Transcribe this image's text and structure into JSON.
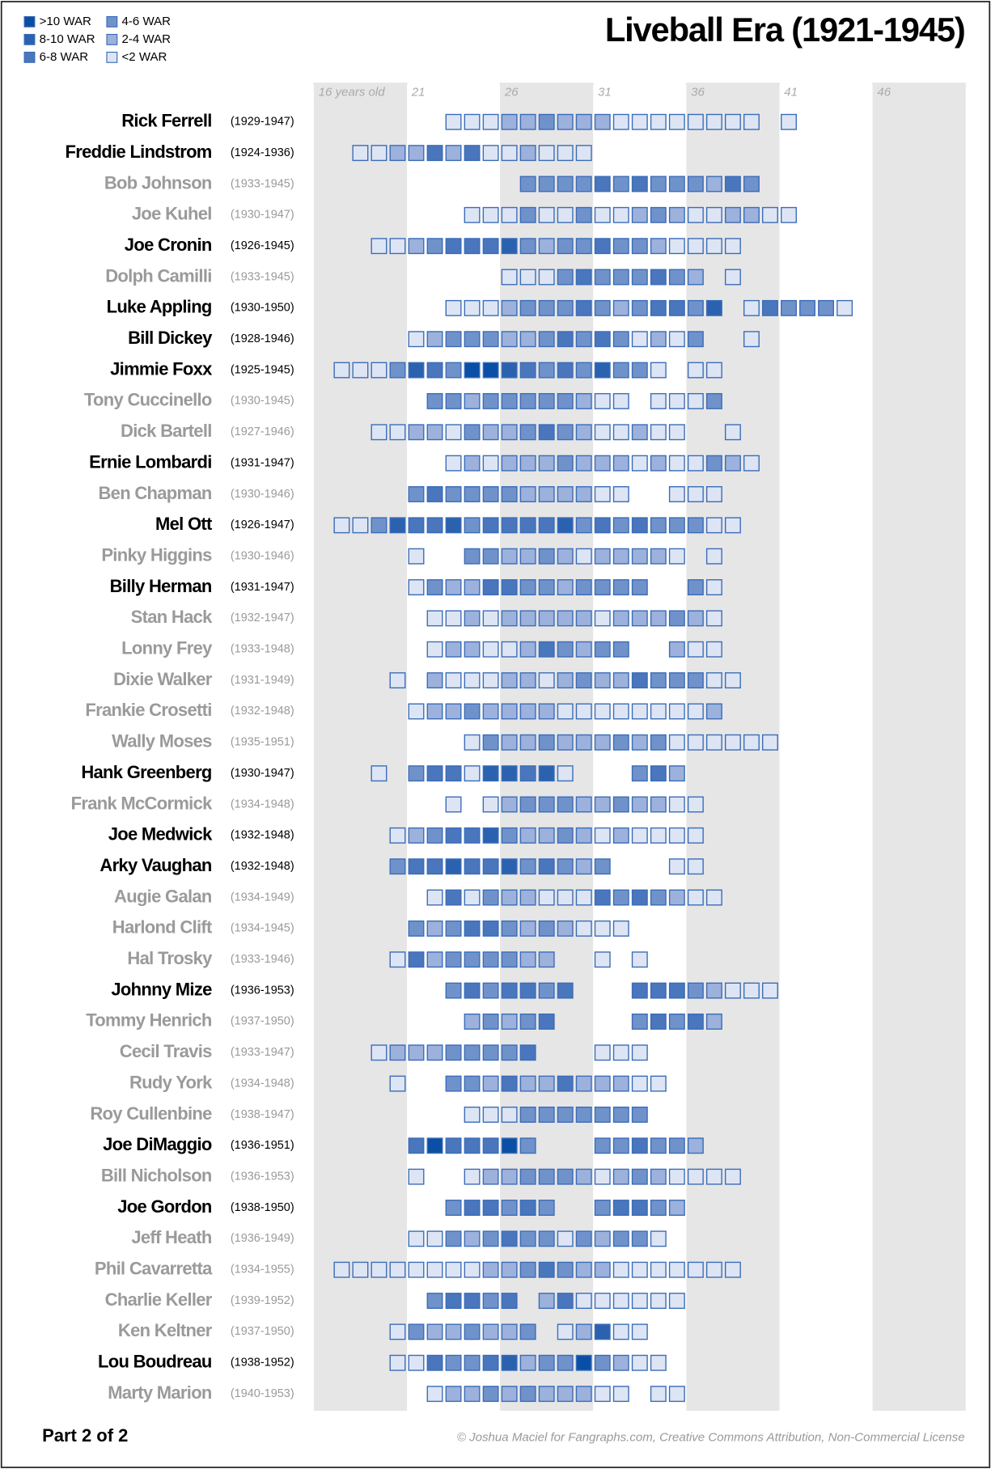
{
  "title": "Liveball Era (1921-1945)",
  "legend": [
    {
      "label": ">10 WAR",
      "color": "#0a4fa6"
    },
    {
      "label": "8-10 WAR",
      "color": "#2a62b0"
    },
    {
      "label": "6-8 WAR",
      "color": "#4a76bd"
    },
    {
      "label": "4-6 WAR",
      "color": "#7092cb"
    },
    {
      "label": "2-4 WAR",
      "color": "#9cb1dc"
    },
    {
      "label": "<2 WAR",
      "color": "#dde5f4"
    }
  ],
  "box_stroke": "#3b6cb7",
  "band_color": "#e6e6e6",
  "xlim": [
    16,
    51
  ],
  "age_ticks": [
    {
      "value": 16,
      "label": "16 years old"
    },
    21,
    26,
    31,
    36,
    41,
    46
  ],
  "players": [
    {
      "name": "Rick Ferrell",
      "years": "(1929-1947)",
      "color": "#000000",
      "start_age": 23,
      "levels": [
        5,
        5,
        5,
        4,
        4,
        3,
        4,
        4,
        4,
        5,
        5,
        5,
        5,
        5,
        5,
        5,
        5,
        null,
        5
      ]
    },
    {
      "name": "Freddie Lindstrom",
      "years": "(1924-1936)",
      "color": "#000000",
      "start_age": 18,
      "levels": [
        5,
        5,
        4,
        4,
        2,
        4,
        2,
        5,
        5,
        4,
        5,
        5,
        5
      ]
    },
    {
      "name": "Bob Johnson",
      "years": "(1933-1945)",
      "color": "#9a9a9a",
      "start_age": 27,
      "levels": [
        3,
        3,
        3,
        3,
        2,
        3,
        2,
        3,
        3,
        3,
        4,
        2,
        3
      ]
    },
    {
      "name": "Joe Kuhel",
      "years": "(1930-1947)",
      "color": "#9a9a9a",
      "start_age": 24,
      "levels": [
        5,
        5,
        5,
        3,
        5,
        5,
        3,
        5,
        5,
        4,
        3,
        4,
        5,
        5,
        4,
        4,
        5,
        5
      ]
    },
    {
      "name": "Joe Cronin",
      "years": "(1926-1945)",
      "color": "#000000",
      "start_age": 19,
      "levels": [
        5,
        5,
        4,
        3,
        2,
        2,
        2,
        1,
        3,
        4,
        3,
        3,
        2,
        3,
        3,
        4,
        5,
        5,
        5,
        5
      ]
    },
    {
      "name": "Dolph Camilli",
      "years": "(1933-1945)",
      "color": "#9a9a9a",
      "start_age": 26,
      "levels": [
        5,
        5,
        5,
        3,
        2,
        3,
        3,
        3,
        2,
        3,
        4,
        null,
        5
      ]
    },
    {
      "name": "Luke Appling",
      "years": "(1930-1950)",
      "color": "#000000",
      "start_age": 23,
      "levels": [
        5,
        5,
        5,
        4,
        3,
        3,
        3,
        2,
        3,
        4,
        3,
        2,
        2,
        3,
        1,
        null,
        5,
        2,
        3,
        3,
        3,
        5
      ]
    },
    {
      "name": "Bill Dickey",
      "years": "(1928-1946)",
      "color": "#000000",
      "start_age": 21,
      "levels": [
        5,
        4,
        3,
        3,
        3,
        4,
        4,
        3,
        2,
        3,
        2,
        3,
        5,
        4,
        5,
        3,
        null,
        null,
        5
      ]
    },
    {
      "name": "Jimmie Foxx",
      "years": "(1925-1945)",
      "color": "#000000",
      "start_age": 17,
      "levels": [
        5,
        5,
        5,
        3,
        1,
        2,
        3,
        0,
        0,
        1,
        2,
        3,
        2,
        3,
        1,
        3,
        3,
        5,
        null,
        5,
        5
      ]
    },
    {
      "name": "Tony Cuccinello",
      "years": "(1930-1945)",
      "color": "#9a9a9a",
      "start_age": 22,
      "levels": [
        3,
        3,
        4,
        3,
        3,
        3,
        3,
        3,
        4,
        5,
        5,
        null,
        5,
        5,
        5,
        3
      ]
    },
    {
      "name": "Dick Bartell",
      "years": "(1927-1946)",
      "color": "#9a9a9a",
      "start_age": 19,
      "levels": [
        5,
        5,
        4,
        4,
        5,
        3,
        4,
        4,
        3,
        2,
        3,
        4,
        5,
        5,
        4,
        5,
        5,
        null,
        null,
        5
      ]
    },
    {
      "name": "Ernie Lombardi",
      "years": "(1931-1947)",
      "color": "#000000",
      "start_age": 23,
      "levels": [
        5,
        4,
        5,
        4,
        4,
        4,
        3,
        4,
        4,
        4,
        5,
        4,
        5,
        5,
        3,
        4,
        5
      ]
    },
    {
      "name": "Ben Chapman",
      "years": "(1930-1946)",
      "color": "#9a9a9a",
      "start_age": 21,
      "levels": [
        3,
        2,
        3,
        3,
        3,
        3,
        4,
        4,
        4,
        4,
        5,
        5,
        null,
        null,
        5,
        5,
        5
      ]
    },
    {
      "name": "Mel Ott",
      "years": "(1926-1947)",
      "color": "#000000",
      "start_age": 17,
      "levels": [
        5,
        5,
        3,
        1,
        2,
        2,
        1,
        3,
        2,
        2,
        2,
        2,
        1,
        3,
        2,
        3,
        2,
        3,
        3,
        3,
        5,
        5
      ]
    },
    {
      "name": "Pinky Higgins",
      "years": "(1930-1946)",
      "color": "#9a9a9a",
      "start_age": 21,
      "levels": [
        5,
        null,
        null,
        3,
        3,
        4,
        4,
        3,
        4,
        5,
        4,
        4,
        4,
        4,
        5,
        null,
        5
      ]
    },
    {
      "name": "Billy Herman",
      "years": "(1931-1947)",
      "color": "#000000",
      "start_age": 21,
      "levels": [
        5,
        3,
        4,
        4,
        2,
        2,
        3,
        3,
        4,
        3,
        3,
        3,
        3,
        null,
        null,
        3,
        5
      ]
    },
    {
      "name": "Stan Hack",
      "years": "(1932-1947)",
      "color": "#9a9a9a",
      "start_age": 22,
      "levels": [
        5,
        5,
        4,
        5,
        4,
        4,
        4,
        4,
        4,
        5,
        4,
        4,
        4,
        3,
        4,
        5
      ]
    },
    {
      "name": "Lonny Frey",
      "years": "(1933-1948)",
      "color": "#9a9a9a",
      "start_age": 22,
      "levels": [
        5,
        4,
        4,
        5,
        5,
        4,
        2,
        3,
        4,
        3,
        3,
        null,
        null,
        4,
        5,
        5
      ]
    },
    {
      "name": "Dixie Walker",
      "years": "(1931-1949)",
      "color": "#9a9a9a",
      "start_age": 20,
      "levels": [
        5,
        null,
        4,
        5,
        5,
        5,
        4,
        4,
        5,
        4,
        3,
        4,
        4,
        2,
        3,
        3,
        3,
        5,
        5
      ]
    },
    {
      "name": "Frankie Crosetti",
      "years": "(1932-1948)",
      "color": "#9a9a9a",
      "start_age": 21,
      "levels": [
        5,
        4,
        4,
        3,
        4,
        4,
        4,
        4,
        5,
        5,
        5,
        5,
        5,
        5,
        5,
        5,
        4
      ]
    },
    {
      "name": "Wally Moses",
      "years": "(1935-1951)",
      "color": "#9a9a9a",
      "start_age": 24,
      "levels": [
        5,
        3,
        4,
        4,
        3,
        4,
        4,
        4,
        3,
        4,
        3,
        5,
        5,
        5,
        5,
        5,
        5
      ]
    },
    {
      "name": "Hank Greenberg",
      "years": "(1930-1947)",
      "color": "#000000",
      "start_age": 19,
      "levels": [
        5,
        null,
        3,
        2,
        2,
        5,
        1,
        1,
        2,
        1,
        5,
        null,
        null,
        null,
        3,
        2,
        4
      ]
    },
    {
      "name": "Frank McCormick",
      "years": "(1934-1948)",
      "color": "#9a9a9a",
      "start_age": 23,
      "levels": [
        5,
        null,
        5,
        4,
        3,
        3,
        3,
        4,
        4,
        3,
        4,
        4,
        5,
        5
      ]
    },
    {
      "name": "Joe Medwick",
      "years": "(1932-1948)",
      "color": "#000000",
      "start_age": 20,
      "levels": [
        5,
        4,
        3,
        2,
        2,
        1,
        3,
        4,
        4,
        3,
        4,
        5,
        4,
        5,
        5,
        5,
        5
      ]
    },
    {
      "name": "Arky Vaughan",
      "years": "(1932-1948)",
      "color": "#000000",
      "start_age": 20,
      "levels": [
        3,
        2,
        2,
        1,
        2,
        2,
        1,
        3,
        2,
        3,
        4,
        3,
        null,
        null,
        null,
        5,
        5
      ]
    },
    {
      "name": "Augie Galan",
      "years": "(1934-1949)",
      "color": "#9a9a9a",
      "start_age": 22,
      "levels": [
        5,
        2,
        5,
        3,
        4,
        4,
        5,
        5,
        5,
        2,
        3,
        2,
        3,
        4,
        5,
        5
      ]
    },
    {
      "name": "Harlond Clift",
      "years": "(1934-1945)",
      "color": "#9a9a9a",
      "start_age": 21,
      "levels": [
        3,
        4,
        3,
        2,
        2,
        3,
        4,
        3,
        4,
        5,
        5,
        5
      ]
    },
    {
      "name": "Hal Trosky",
      "years": "(1933-1946)",
      "color": "#9a9a9a",
      "start_age": 20,
      "levels": [
        5,
        2,
        4,
        3,
        3,
        3,
        3,
        4,
        4,
        null,
        null,
        5,
        null,
        5
      ]
    },
    {
      "name": "Johnny Mize",
      "years": "(1936-1953)",
      "color": "#000000",
      "start_age": 23,
      "levels": [
        3,
        2,
        3,
        2,
        2,
        3,
        2,
        null,
        null,
        null,
        2,
        2,
        2,
        3,
        4,
        5,
        5,
        5
      ]
    },
    {
      "name": "Tommy Henrich",
      "years": "(1937-1950)",
      "color": "#9a9a9a",
      "start_age": 24,
      "levels": [
        4,
        3,
        4,
        3,
        2,
        null,
        null,
        null,
        null,
        3,
        2,
        3,
        2,
        4
      ]
    },
    {
      "name": "Cecil Travis",
      "years": "(1933-1947)",
      "color": "#9a9a9a",
      "start_age": 19,
      "levels": [
        5,
        4,
        4,
        4,
        3,
        3,
        3,
        3,
        2,
        null,
        null,
        null,
        5,
        5,
        5
      ]
    },
    {
      "name": "Rudy York",
      "years": "(1934-1948)",
      "color": "#9a9a9a",
      "start_age": 20,
      "levels": [
        5,
        null,
        null,
        3,
        3,
        4,
        2,
        4,
        4,
        2,
        4,
        4,
        4,
        5,
        5
      ]
    },
    {
      "name": "Roy Cullenbine",
      "years": "(1938-1947)",
      "color": "#9a9a9a",
      "start_age": 24,
      "levels": [
        5,
        5,
        5,
        3,
        3,
        3,
        3,
        3,
        3,
        3
      ]
    },
    {
      "name": "Joe DiMaggio",
      "years": "(1936-1951)",
      "color": "#000000",
      "start_age": 21,
      "levels": [
        2,
        0,
        2,
        2,
        2,
        0,
        3,
        null,
        null,
        null,
        3,
        3,
        2,
        3,
        3,
        4
      ]
    },
    {
      "name": "Bill Nicholson",
      "years": "(1936-1953)",
      "color": "#9a9a9a",
      "start_age": 21,
      "levels": [
        5,
        null,
        null,
        5,
        4,
        4,
        3,
        3,
        3,
        4,
        5,
        4,
        3,
        4,
        5,
        5,
        5,
        5
      ]
    },
    {
      "name": "Joe Gordon",
      "years": "(1938-1950)",
      "color": "#000000",
      "start_age": 23,
      "levels": [
        3,
        2,
        2,
        3,
        2,
        3,
        null,
        null,
        3,
        2,
        2,
        3,
        4
      ]
    },
    {
      "name": "Jeff Heath",
      "years": "(1936-1949)",
      "color": "#9a9a9a",
      "start_age": 21,
      "levels": [
        5,
        5,
        3,
        4,
        3,
        2,
        3,
        3,
        5,
        3,
        4,
        3,
        3,
        5
      ]
    },
    {
      "name": "Phil Cavarretta",
      "years": "(1934-1955)",
      "color": "#9a9a9a",
      "start_age": 17,
      "levels": [
        5,
        5,
        5,
        5,
        5,
        5,
        5,
        5,
        4,
        4,
        3,
        2,
        3,
        4,
        4,
        5,
        5,
        5,
        5,
        5,
        5,
        5
      ]
    },
    {
      "name": "Charlie Keller",
      "years": "(1939-1952)",
      "color": "#9a9a9a",
      "start_age": 22,
      "levels": [
        3,
        2,
        2,
        3,
        2,
        null,
        4,
        2,
        5,
        5,
        5,
        5,
        5,
        5
      ]
    },
    {
      "name": "Ken Keltner",
      "years": "(1937-1950)",
      "color": "#9a9a9a",
      "start_age": 20,
      "levels": [
        5,
        3,
        4,
        4,
        3,
        4,
        4,
        3,
        null,
        5,
        4,
        1,
        5,
        5
      ]
    },
    {
      "name": "Lou Boudreau",
      "years": "(1938-1952)",
      "color": "#000000",
      "start_age": 20,
      "levels": [
        5,
        5,
        2,
        3,
        3,
        2,
        1,
        4,
        3,
        3,
        0,
        3,
        4,
        5,
        5
      ]
    },
    {
      "name": "Marty Marion",
      "years": "(1940-1953)",
      "color": "#9a9a9a",
      "start_age": 22,
      "levels": [
        5,
        4,
        4,
        3,
        4,
        3,
        4,
        4,
        4,
        5,
        5,
        null,
        5,
        5
      ]
    }
  ],
  "footer": {
    "left": "Part 2 of 2",
    "right": "© Joshua Maciel for Fangraphs.com, Creative Commons Attribution, Non-Commercial License"
  }
}
